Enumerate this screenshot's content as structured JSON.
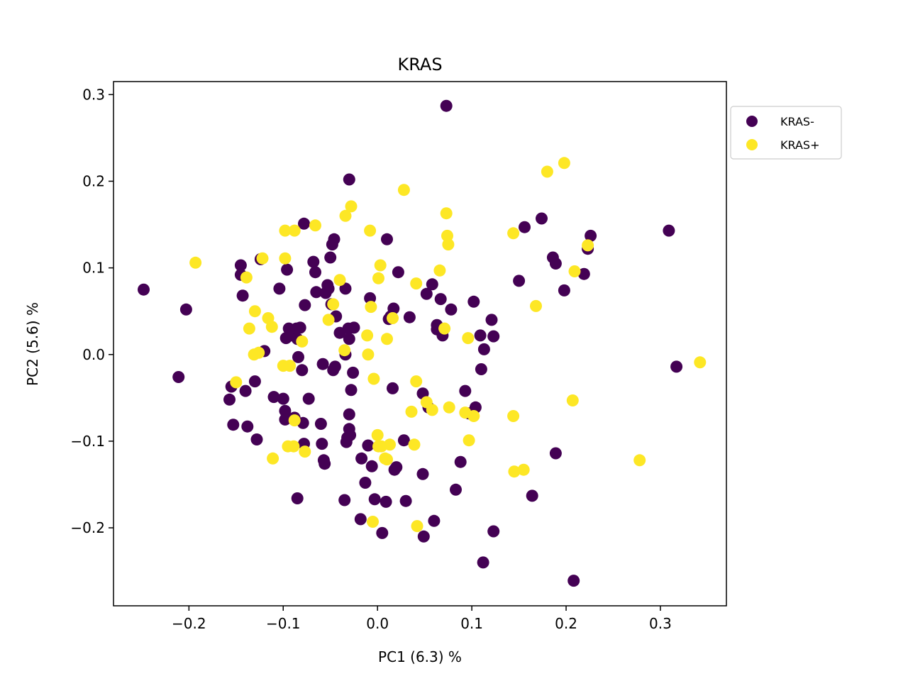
{
  "chart_data": {
    "type": "scatter",
    "title": "KRAS",
    "xlabel": "PC1 (6.3) %",
    "ylabel": "PC2 (5.6) %",
    "xlim": [
      -0.28,
      0.37
    ],
    "ylim": [
      -0.29,
      0.315
    ],
    "xticks": [
      -0.2,
      -0.1,
      0.0,
      0.1,
      0.2,
      0.3
    ],
    "xtick_labels": [
      "−0.2",
      "−0.1",
      "0.0",
      "0.1",
      "0.2",
      "0.3"
    ],
    "yticks": [
      -0.2,
      -0.1,
      0.0,
      0.1,
      0.2,
      0.3
    ],
    "ytick_labels": [
      "−0.2",
      "−0.1",
      "0.0",
      "0.1",
      "0.2",
      "0.3"
    ],
    "grid": false,
    "legend_position": "outside-upper-right",
    "series": [
      {
        "name": "KRAS-",
        "color": "#440154",
        "points": [
          [
            0.073,
            0.287
          ],
          [
            -0.03,
            0.202
          ],
          [
            -0.248,
            0.075
          ],
          [
            -0.203,
            0.052
          ],
          [
            -0.211,
            -0.026
          ],
          [
            -0.157,
            -0.052
          ],
          [
            -0.155,
            -0.037
          ],
          [
            -0.153,
            -0.081
          ],
          [
            -0.145,
            0.103
          ],
          [
            -0.145,
            0.092
          ],
          [
            -0.143,
            0.068
          ],
          [
            -0.14,
            -0.042
          ],
          [
            -0.138,
            -0.083
          ],
          [
            -0.13,
            -0.031
          ],
          [
            -0.128,
            -0.098
          ],
          [
            -0.124,
            0.11
          ],
          [
            -0.12,
            0.004
          ],
          [
            -0.11,
            -0.049
          ],
          [
            -0.104,
            0.076
          ],
          [
            -0.1,
            -0.051
          ],
          [
            -0.098,
            -0.065
          ],
          [
            -0.098,
            -0.075
          ],
          [
            -0.097,
            0.019
          ],
          [
            -0.096,
            0.098
          ],
          [
            -0.094,
            0.03
          ],
          [
            -0.092,
            0.022
          ],
          [
            -0.088,
            -0.073
          ],
          [
            -0.086,
            0.03
          ],
          [
            -0.085,
            -0.166
          ],
          [
            -0.085,
            0.018
          ],
          [
            -0.084,
            -0.003
          ],
          [
            -0.082,
            0.031
          ],
          [
            -0.08,
            -0.018
          ],
          [
            -0.079,
            -0.079
          ],
          [
            -0.078,
            0.151
          ],
          [
            -0.078,
            -0.103
          ],
          [
            -0.077,
            0.057
          ],
          [
            -0.073,
            -0.051
          ],
          [
            -0.068,
            0.107
          ],
          [
            -0.066,
            0.095
          ],
          [
            -0.065,
            0.072
          ],
          [
            -0.06,
            -0.08
          ],
          [
            -0.059,
            -0.103
          ],
          [
            -0.058,
            -0.011
          ],
          [
            -0.057,
            -0.122
          ],
          [
            -0.056,
            -0.126
          ],
          [
            -0.055,
            0.071
          ],
          [
            -0.053,
            0.08
          ],
          [
            -0.052,
            0.076
          ],
          [
            -0.05,
            0.112
          ],
          [
            -0.049,
            0.058
          ],
          [
            -0.048,
            0.127
          ],
          [
            -0.047,
            -0.018
          ],
          [
            -0.046,
            0.133
          ],
          [
            -0.045,
            -0.014
          ],
          [
            -0.044,
            0.044
          ],
          [
            -0.04,
            0.025
          ],
          [
            -0.035,
            -0.168
          ],
          [
            -0.034,
            0.076
          ],
          [
            -0.034,
            0.0
          ],
          [
            -0.033,
            -0.101
          ],
          [
            -0.032,
            -0.096
          ],
          [
            -0.031,
            0.03
          ],
          [
            -0.03,
            0.018
          ],
          [
            -0.03,
            -0.069
          ],
          [
            -0.03,
            -0.086
          ],
          [
            -0.029,
            -0.093
          ],
          [
            -0.028,
            -0.041
          ],
          [
            -0.026,
            -0.021
          ],
          [
            -0.025,
            0.031
          ],
          [
            -0.018,
            -0.19
          ],
          [
            -0.017,
            -0.12
          ],
          [
            -0.013,
            -0.148
          ],
          [
            -0.01,
            -0.105
          ],
          [
            -0.008,
            0.065
          ],
          [
            -0.006,
            -0.129
          ],
          [
            -0.003,
            -0.167
          ],
          [
            0.005,
            -0.206
          ],
          [
            0.009,
            -0.17
          ],
          [
            0.01,
            0.133
          ],
          [
            0.012,
            0.041
          ],
          [
            0.014,
            0.044
          ],
          [
            0.016,
            -0.039
          ],
          [
            0.017,
            0.053
          ],
          [
            0.018,
            -0.133
          ],
          [
            0.02,
            -0.13
          ],
          [
            0.022,
            0.095
          ],
          [
            0.028,
            -0.099
          ],
          [
            0.03,
            -0.169
          ],
          [
            0.034,
            0.043
          ],
          [
            0.048,
            -0.045
          ],
          [
            0.048,
            -0.138
          ],
          [
            0.049,
            -0.21
          ],
          [
            0.052,
            0.07
          ],
          [
            0.054,
            -0.061
          ],
          [
            0.058,
            0.081
          ],
          [
            0.06,
            -0.192
          ],
          [
            0.063,
            0.034
          ],
          [
            0.063,
            0.029
          ],
          [
            0.067,
            0.064
          ],
          [
            0.069,
            0.022
          ],
          [
            0.078,
            0.052
          ],
          [
            0.083,
            -0.156
          ],
          [
            0.088,
            -0.124
          ],
          [
            0.093,
            -0.042
          ],
          [
            0.097,
            -0.068
          ],
          [
            0.102,
            0.061
          ],
          [
            0.104,
            -0.061
          ],
          [
            0.109,
            0.022
          ],
          [
            0.11,
            -0.017
          ],
          [
            0.112,
            -0.24
          ],
          [
            0.113,
            0.006
          ],
          [
            0.121,
            0.04
          ],
          [
            0.123,
            0.021
          ],
          [
            0.123,
            -0.204
          ],
          [
            0.15,
            0.085
          ],
          [
            0.156,
            0.147
          ],
          [
            0.164,
            -0.163
          ],
          [
            0.174,
            0.157
          ],
          [
            0.186,
            0.112
          ],
          [
            0.189,
            0.105
          ],
          [
            0.189,
            -0.114
          ],
          [
            0.198,
            0.074
          ],
          [
            0.208,
            -0.261
          ],
          [
            0.219,
            0.093
          ],
          [
            0.223,
            0.122
          ],
          [
            0.226,
            0.137
          ],
          [
            0.309,
            0.143
          ],
          [
            0.317,
            -0.014
          ]
        ]
      },
      {
        "name": "KRAS+",
        "color": "#fde725",
        "points": [
          [
            0.198,
            0.221
          ],
          [
            0.18,
            0.211
          ],
          [
            0.028,
            0.19
          ],
          [
            -0.028,
            0.171
          ],
          [
            -0.034,
            0.16
          ],
          [
            0.073,
            0.163
          ],
          [
            -0.066,
            0.149
          ],
          [
            -0.088,
            0.143
          ],
          [
            -0.098,
            0.143
          ],
          [
            -0.008,
            0.143
          ],
          [
            0.074,
            0.137
          ],
          [
            0.075,
            0.127
          ],
          [
            0.144,
            0.14
          ],
          [
            0.223,
            0.126
          ],
          [
            -0.193,
            0.106
          ],
          [
            -0.122,
            0.111
          ],
          [
            -0.098,
            0.111
          ],
          [
            0.003,
            0.103
          ],
          [
            0.066,
            0.097
          ],
          [
            0.209,
            0.096
          ],
          [
            -0.04,
            0.086
          ],
          [
            -0.139,
            0.089
          ],
          [
            0.001,
            0.088
          ],
          [
            0.041,
            0.082
          ],
          [
            -0.047,
            0.058
          ],
          [
            -0.13,
            0.05
          ],
          [
            -0.007,
            0.055
          ],
          [
            0.016,
            0.042
          ],
          [
            0.168,
            0.056
          ],
          [
            -0.116,
            0.042
          ],
          [
            -0.052,
            0.04
          ],
          [
            -0.136,
            0.03
          ],
          [
            -0.112,
            0.032
          ],
          [
            0.071,
            0.03
          ],
          [
            -0.08,
            0.015
          ],
          [
            -0.011,
            0.022
          ],
          [
            0.01,
            0.018
          ],
          [
            0.096,
            0.019
          ],
          [
            -0.035,
            0.005
          ],
          [
            -0.01,
            0.0
          ],
          [
            -0.131,
            0.0
          ],
          [
            -0.126,
            0.002
          ],
          [
            -0.1,
            -0.013
          ],
          [
            -0.093,
            -0.013
          ],
          [
            -0.004,
            -0.028
          ],
          [
            -0.15,
            -0.032
          ],
          [
            0.041,
            -0.031
          ],
          [
            0.052,
            -0.055
          ],
          [
            0.058,
            -0.064
          ],
          [
            0.076,
            -0.061
          ],
          [
            0.036,
            -0.066
          ],
          [
            0.093,
            -0.067
          ],
          [
            0.102,
            -0.071
          ],
          [
            0.144,
            -0.071
          ],
          [
            0.207,
            -0.053
          ],
          [
            -0.088,
            -0.076
          ],
          [
            -0.095,
            -0.106
          ],
          [
            -0.089,
            -0.106
          ],
          [
            0.0,
            -0.093
          ],
          [
            0.001,
            -0.106
          ],
          [
            0.004,
            -0.106
          ],
          [
            0.013,
            -0.104
          ],
          [
            -0.077,
            -0.112
          ],
          [
            0.039,
            -0.104
          ],
          [
            -0.111,
            -0.12
          ],
          [
            0.01,
            -0.121
          ],
          [
            0.097,
            -0.099
          ],
          [
            0.145,
            -0.135
          ],
          [
            0.155,
            -0.133
          ],
          [
            0.278,
            -0.122
          ],
          [
            -0.005,
            -0.193
          ],
          [
            0.042,
            -0.198
          ],
          [
            0.342,
            -0.009
          ],
          [
            0.008,
            -0.12
          ]
        ]
      }
    ]
  }
}
